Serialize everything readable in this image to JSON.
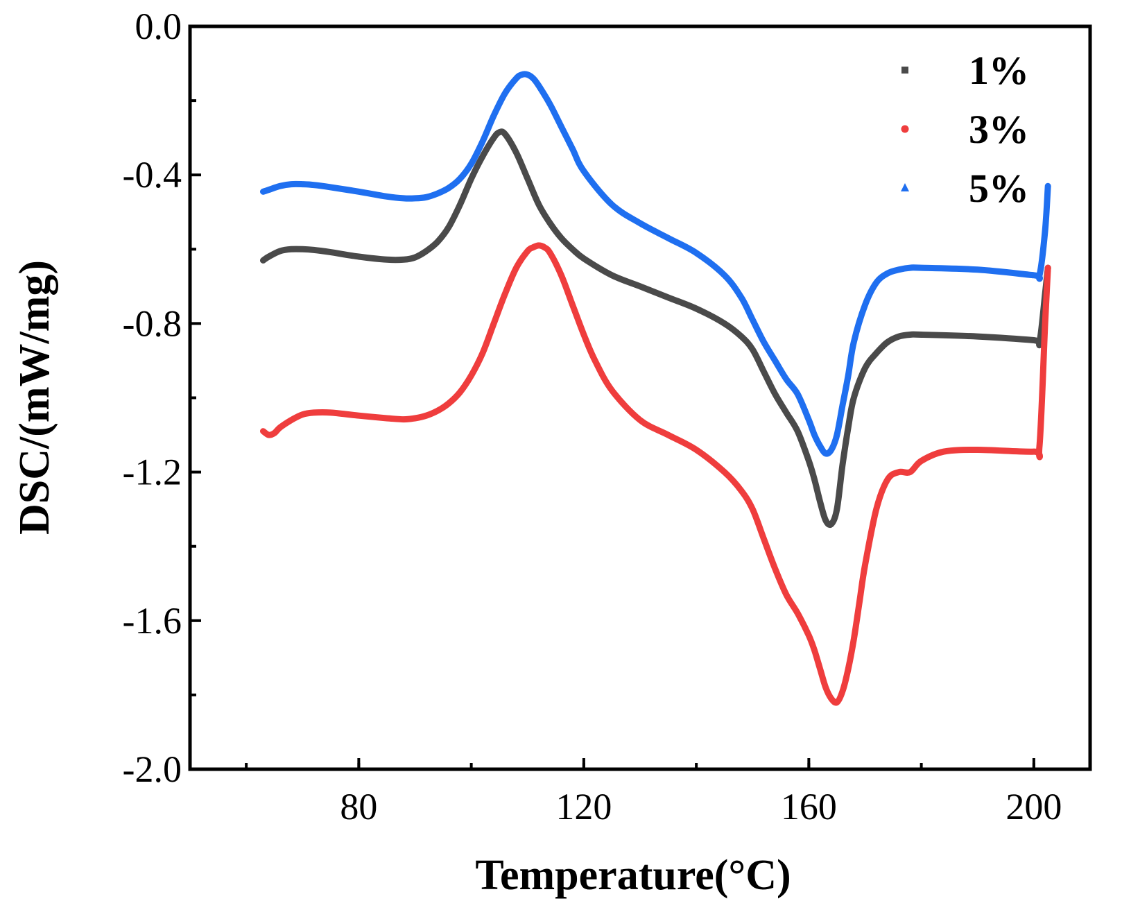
{
  "chart_data": {
    "type": "line",
    "title": "",
    "xlabel": "Temperature(°C)",
    "ylabel": "DSC/(mW/mg)",
    "xlim": [
      50,
      210
    ],
    "ylim": [
      -2.0,
      0.0
    ],
    "xticks": [
      80,
      120,
      160,
      200
    ],
    "xtick_labels": [
      "80",
      "120",
      "160",
      "200"
    ],
    "yticks": [
      0.0,
      -0.4,
      -0.8,
      -1.2,
      -1.6,
      -2.0
    ],
    "ytick_labels": [
      "0.0",
      "-0.4",
      "-0.8",
      "-1.2",
      "-1.6",
      "-2.0"
    ],
    "grid": false,
    "legend_position": "top-right",
    "series": [
      {
        "name": "1%",
        "color": "#4a4a4a",
        "marker": "square",
        "x": [
          63,
          64,
          66,
          68,
          70,
          72,
          75,
          80,
          85,
          88,
          90,
          92,
          94,
          96,
          98,
          100,
          102,
          104,
          105,
          106,
          108,
          110,
          112,
          114,
          116,
          118,
          120,
          125,
          130,
          135,
          140,
          145,
          148,
          150,
          152,
          154,
          156,
          158,
          160,
          161,
          162,
          163,
          164,
          165,
          166,
          167,
          168,
          170,
          172,
          174,
          176,
          178,
          180,
          190,
          200,
          201,
          202,
          202.5
        ],
        "y": [
          -0.63,
          -0.62,
          -0.605,
          -0.6,
          -0.6,
          -0.602,
          -0.608,
          -0.62,
          -0.628,
          -0.628,
          -0.622,
          -0.605,
          -0.58,
          -0.54,
          -0.48,
          -0.41,
          -0.35,
          -0.3,
          -0.285,
          -0.29,
          -0.34,
          -0.41,
          -0.48,
          -0.53,
          -0.57,
          -0.6,
          -0.625,
          -0.67,
          -0.7,
          -0.73,
          -0.76,
          -0.8,
          -0.835,
          -0.87,
          -0.93,
          -0.99,
          -1.04,
          -1.09,
          -1.17,
          -1.22,
          -1.28,
          -1.33,
          -1.34,
          -1.3,
          -1.18,
          -1.08,
          -1.0,
          -0.92,
          -0.88,
          -0.85,
          -0.835,
          -0.83,
          -0.83,
          -0.835,
          -0.845,
          -0.85,
          -0.72,
          -0.65
        ]
      },
      {
        "name": "3%",
        "color": "#ef3d3d",
        "marker": "circle",
        "x": [
          63,
          64,
          65,
          66,
          68,
          70,
          72,
          75,
          80,
          85,
          88,
          90,
          92,
          94,
          96,
          98,
          100,
          102,
          104,
          106,
          108,
          110,
          111,
          112,
          113,
          114,
          116,
          118,
          120,
          122,
          125,
          130,
          135,
          140,
          145,
          148,
          150,
          152,
          154,
          156,
          158,
          160,
          161,
          162,
          163,
          164,
          165,
          166,
          167,
          168,
          169,
          170,
          172,
          174,
          176,
          178,
          180,
          184,
          190,
          200,
          201,
          202,
          202.5
        ],
        "y": [
          -1.09,
          -1.1,
          -1.095,
          -1.08,
          -1.06,
          -1.045,
          -1.04,
          -1.04,
          -1.048,
          -1.055,
          -1.058,
          -1.055,
          -1.048,
          -1.035,
          -1.015,
          -0.985,
          -0.94,
          -0.88,
          -0.8,
          -0.72,
          -0.65,
          -0.605,
          -0.595,
          -0.59,
          -0.595,
          -0.61,
          -0.67,
          -0.75,
          -0.83,
          -0.9,
          -0.98,
          -1.06,
          -1.1,
          -1.14,
          -1.2,
          -1.25,
          -1.3,
          -1.38,
          -1.46,
          -1.53,
          -1.58,
          -1.64,
          -1.68,
          -1.73,
          -1.78,
          -1.81,
          -1.82,
          -1.79,
          -1.73,
          -1.65,
          -1.55,
          -1.45,
          -1.3,
          -1.22,
          -1.2,
          -1.2,
          -1.17,
          -1.145,
          -1.14,
          -1.145,
          -1.13,
          -0.8,
          -0.65
        ]
      },
      {
        "name": "5%",
        "color": "#1f6ff0",
        "marker": "triangle",
        "x": [
          63,
          64,
          66,
          68,
          70,
          72,
          75,
          80,
          85,
          88,
          90,
          92,
          94,
          96,
          98,
          100,
          102,
          104,
          106,
          108,
          109,
          110,
          111,
          112,
          114,
          116,
          118,
          120,
          125,
          130,
          135,
          140,
          145,
          148,
          150,
          152,
          154,
          156,
          158,
          160,
          161,
          162,
          163,
          164,
          165,
          166,
          167,
          168,
          170,
          172,
          174,
          176,
          178,
          180,
          190,
          200,
          201,
          202,
          202.5
        ],
        "y": [
          -0.445,
          -0.44,
          -0.43,
          -0.425,
          -0.425,
          -0.427,
          -0.433,
          -0.445,
          -0.458,
          -0.463,
          -0.463,
          -0.46,
          -0.45,
          -0.435,
          -0.41,
          -0.37,
          -0.31,
          -0.24,
          -0.18,
          -0.14,
          -0.13,
          -0.13,
          -0.14,
          -0.16,
          -0.21,
          -0.27,
          -0.33,
          -0.39,
          -0.48,
          -0.53,
          -0.57,
          -0.61,
          -0.67,
          -0.73,
          -0.79,
          -0.85,
          -0.9,
          -0.95,
          -0.99,
          -1.06,
          -1.1,
          -1.13,
          -1.15,
          -1.14,
          -1.1,
          -1.02,
          -0.94,
          -0.85,
          -0.75,
          -0.69,
          -0.665,
          -0.655,
          -0.65,
          -0.65,
          -0.655,
          -0.67,
          -0.67,
          -0.55,
          -0.43
        ]
      }
    ]
  }
}
